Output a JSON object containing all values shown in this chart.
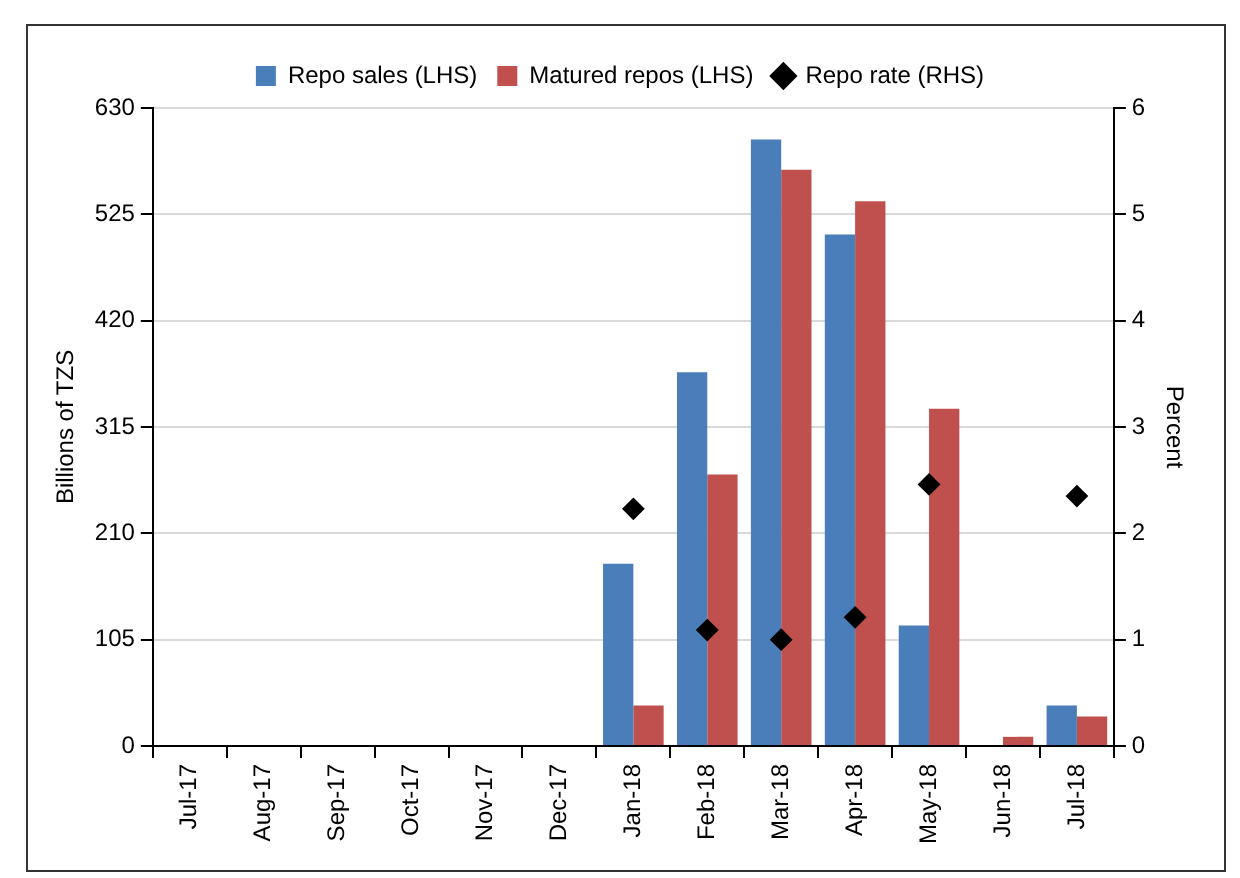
{
  "chart_data": {
    "type": "bar",
    "categories": [
      "Jul-17",
      "Aug-17",
      "Sep-17",
      "Oct-17",
      "Nov-17",
      "Dec-17",
      "Jan-18",
      "Feb-18",
      "Mar-18",
      "Apr-18",
      "May-18",
      "Jun-18",
      "Jul-18"
    ],
    "series": [
      {
        "name": "Repo sales (LHS)",
        "color": "#4a7ebb",
        "values": [
          null,
          null,
          null,
          null,
          null,
          null,
          180,
          369,
          599,
          505,
          119,
          0,
          40
        ]
      },
      {
        "name": "Matured repos (LHS)",
        "color": "#c0504d",
        "values": [
          null,
          null,
          null,
          null,
          null,
          null,
          40,
          268,
          569,
          538,
          333,
          9,
          29
        ]
      },
      {
        "name": "Repo rate (RHS)",
        "type": "scatter",
        "axis": "y2",
        "color": "#000000",
        "values": [
          null,
          null,
          null,
          null,
          null,
          null,
          2.23,
          1.09,
          1.0,
          1.21,
          2.46,
          null,
          2.35
        ]
      }
    ],
    "ylabel": "Billions of TZS",
    "y2label": "Percent",
    "ylim": [
      0,
      630
    ],
    "yticks": [
      0,
      105,
      210,
      315,
      420,
      525,
      630
    ],
    "y2lim": [
      0,
      6
    ],
    "y2ticks": [
      0,
      1,
      2,
      3,
      4,
      5,
      6
    ],
    "grid": "y",
    "legend": "top",
    "marker": "diamond"
  }
}
